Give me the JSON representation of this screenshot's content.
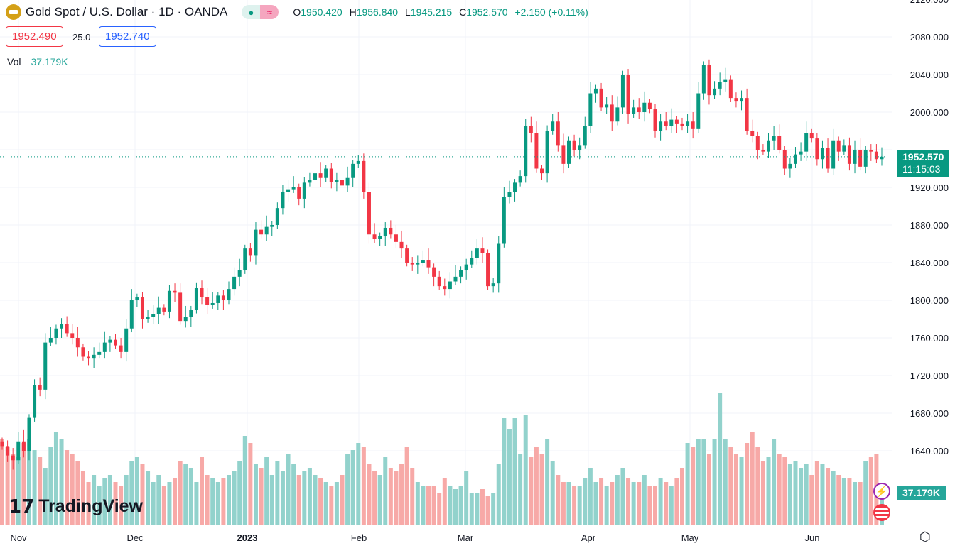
{
  "header": {
    "title": "Gold Spot / U.S. Dollar · 1D · OANDA",
    "open_label": "O",
    "open": "1950.420",
    "high_label": "H",
    "high": "1956.840",
    "low_label": "L",
    "low": "1945.215",
    "close_label": "C",
    "close": "1952.570",
    "change": "+2.150 (+0.11%)"
  },
  "quote": {
    "bid": "1952.490",
    "spread": "25.0",
    "ask": "1952.740"
  },
  "volume_legend": {
    "label": "Vol",
    "value": "37.179K"
  },
  "last_price_tag": {
    "price": "1952.570",
    "countdown": "11:15:03"
  },
  "volume_tag": "37.179K",
  "watermark": "TradingView",
  "colors": {
    "up": "#089981",
    "down": "#f23645",
    "vol_up": "#92d2cc",
    "vol_down": "#f7a9a7"
  },
  "chart_data": {
    "type": "candlestick",
    "symbol": "XAUUSD",
    "yticks": [
      2120,
      2080,
      2040,
      2000,
      1960,
      1920,
      1880,
      1840,
      1800,
      1760,
      1720,
      1680,
      1640
    ],
    "ylim": [
      1600,
      2120
    ],
    "xticks": [
      "Nov",
      "Dec",
      "2023",
      "Feb",
      "Mar",
      "Apr",
      "May",
      "Jun"
    ],
    "grid": true,
    "close": [
      1645,
      1635,
      1630,
      1650,
      1640,
      1675,
      1710,
      1705,
      1755,
      1760,
      1770,
      1775,
      1765,
      1760,
      1750,
      1740,
      1738,
      1742,
      1745,
      1755,
      1758,
      1752,
      1745,
      1770,
      1800,
      1803,
      1780,
      1782,
      1785,
      1792,
      1788,
      1810,
      1808,
      1778,
      1782,
      1790,
      1813,
      1803,
      1795,
      1797,
      1805,
      1800,
      1812,
      1825,
      1832,
      1855,
      1848,
      1875,
      1870,
      1878,
      1880,
      1898,
      1915,
      1918,
      1920,
      1908,
      1925,
      1928,
      1935,
      1930,
      1940,
      1926,
      1928,
      1922,
      1930,
      1945,
      1948,
      1915,
      1870,
      1865,
      1868,
      1877,
      1870,
      1862,
      1855,
      1840,
      1838,
      1840,
      1843,
      1835,
      1825,
      1815,
      1812,
      1820,
      1825,
      1832,
      1838,
      1845,
      1855,
      1850,
      1815,
      1818,
      1860,
      1910,
      1915,
      1925,
      1932,
      1985,
      1978,
      1940,
      1935,
      1980,
      1990,
      1965,
      1945,
      1970,
      1960,
      1965,
      1985,
      2020,
      2025,
      2005,
      2008,
      1990,
      2005,
      2040,
      1998,
      2005,
      2000,
      2010,
      2003,
      1980,
      1990,
      1985,
      1992,
      1988,
      1985,
      1990,
      1982,
      2020,
      2050,
      2018,
      2025,
      2032,
      2035,
      2015,
      2012,
      2015,
      1980,
      1975,
      1960,
      1958,
      1970,
      1975,
      1960,
      1940,
      1945,
      1955,
      1958,
      1978,
      1972,
      1950,
      1962,
      1940,
      1970,
      1958,
      1965,
      1945,
      1960,
      1942,
      1960,
      1958,
      1950,
      1952.57
    ],
    "volume": [
      120,
      110,
      100,
      95,
      115,
      120,
      105,
      95,
      80,
      110,
      130,
      120,
      105,
      100,
      90,
      75,
      60,
      70,
      55,
      65,
      70,
      60,
      55,
      70,
      90,
      95,
      85,
      75,
      60,
      70,
      55,
      60,
      65,
      90,
      85,
      80,
      60,
      95,
      70,
      65,
      60,
      65,
      70,
      75,
      90,
      125,
      115,
      85,
      80,
      95,
      70,
      90,
      75,
      100,
      85,
      70,
      75,
      80,
      70,
      65,
      60,
      55,
      60,
      70,
      100,
      105,
      115,
      110,
      85,
      75,
      70,
      95,
      80,
      75,
      85,
      110,
      80,
      60,
      55,
      55,
      55,
      45,
      65,
      55,
      50,
      55,
      75,
      45,
      45,
      50,
      40,
      45,
      85,
      150,
      135,
      150,
      100,
      155,
      95,
      110,
      100,
      120,
      90,
      70,
      60,
      60,
      55,
      55,
      65,
      80,
      60,
      65,
      55,
      60,
      70,
      80,
      65,
      60,
      60,
      70,
      55,
      55,
      65,
      60,
      55,
      65,
      80,
      115,
      110,
      120,
      120,
      100,
      120,
      185,
      120,
      110,
      100,
      95,
      115,
      130,
      110,
      90,
      95,
      120,
      100,
      95,
      85,
      90,
      80,
      85,
      70,
      90,
      85,
      80,
      75,
      70,
      65,
      65,
      60,
      60,
      90,
      95,
      100,
      37.179
    ]
  }
}
